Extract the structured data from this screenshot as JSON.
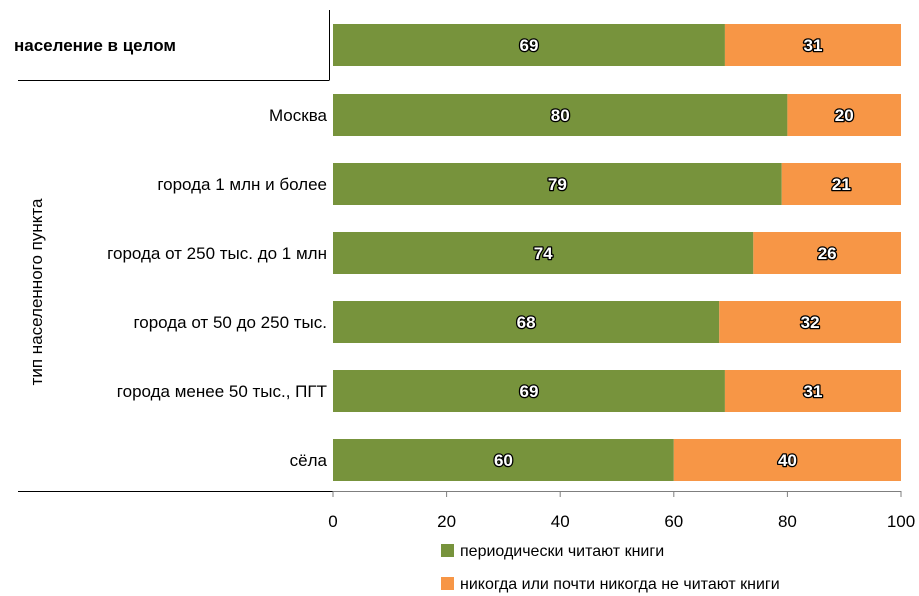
{
  "chart_data": {
    "type": "bar",
    "orientation": "horizontal",
    "stacked": true,
    "ylabel": "тип населенного пункта",
    "xlabel": "",
    "xlim": [
      0,
      100
    ],
    "x_ticks": [
      "0",
      "20",
      "40",
      "60",
      "80",
      "100"
    ],
    "legend_position": "bottom",
    "grid": false,
    "summary_category": "население в целом",
    "categories": [
      "население в целом",
      "Москва",
      "города 1 млн и более",
      "города от 250 тыс. до 1 млн",
      "города от 50 до 250 тыс.",
      "города менее 50 тыс., ПГТ",
      "сёла"
    ],
    "series": [
      {
        "name": "периодически читают книги",
        "color": "#77933c",
        "values": [
          69,
          80,
          79,
          74,
          68,
          69,
          60
        ]
      },
      {
        "name": "никогда или почти никогда не читают книги",
        "color": "#f79646",
        "values": [
          31,
          20,
          21,
          26,
          32,
          31,
          40
        ]
      }
    ]
  }
}
